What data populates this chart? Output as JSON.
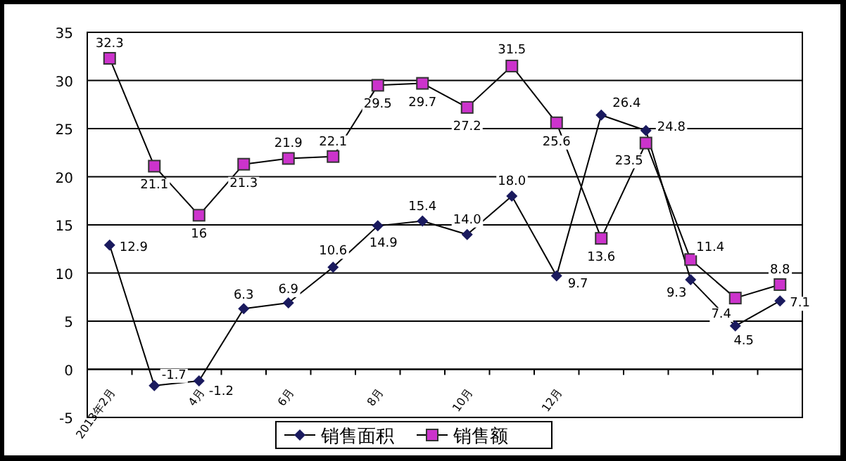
{
  "chart_data": {
    "type": "line",
    "categories": [
      "2013年2月",
      null,
      "4月",
      null,
      "6月",
      null,
      "8月",
      null,
      "10月",
      null,
      "12月",
      null,
      null,
      null,
      null,
      null
    ],
    "series": [
      {
        "name": "销售面积",
        "color": "#1a1a5e",
        "marker": "diamond",
        "values": [
          12.9,
          -1.7,
          -1.2,
          6.3,
          6.9,
          10.6,
          14.9,
          15.4,
          14.0,
          18.0,
          9.7,
          26.4,
          24.8,
          9.3,
          4.5,
          7.1
        ],
        "value_labels": [
          "12.9",
          "-1.7",
          "-1.2",
          "6.3",
          "6.9",
          "10.6",
          "14.9",
          "15.4",
          "14.0",
          "18.0",
          "9.7",
          "26.4",
          "24.8",
          "9.3",
          "4.5",
          "7.1"
        ]
      },
      {
        "name": "销售额",
        "color": "#cc33cc",
        "marker": "square",
        "values": [
          32.3,
          21.1,
          16,
          21.3,
          21.9,
          22.1,
          29.5,
          29.7,
          27.2,
          31.5,
          25.6,
          13.6,
          23.5,
          11.4,
          7.4,
          8.8
        ],
        "value_labels": [
          "32.3",
          "21.1",
          "16",
          "21.3",
          "21.9",
          "22.1",
          "29.5",
          "29.7",
          "27.2",
          "31.5",
          "25.6",
          "13.6",
          "23.5",
          "11.4",
          "7.4",
          "8.8"
        ]
      }
    ],
    "ylim": [
      -5,
      35
    ],
    "yticks": [
      -5,
      0,
      5,
      10,
      15,
      20,
      25,
      30,
      35
    ],
    "grid": "y",
    "legend": "bottom"
  }
}
